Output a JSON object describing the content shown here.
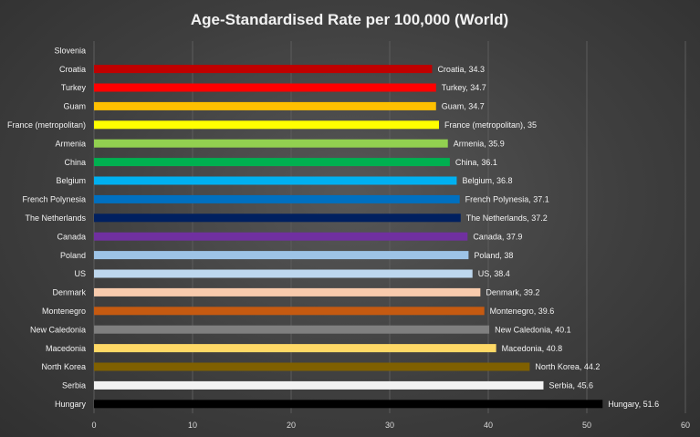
{
  "chart_data": {
    "type": "bar",
    "orientation": "horizontal",
    "title": "Age-Standardised Rate per 100,000 (World)",
    "xlabel": "",
    "ylabel": "",
    "xlim": [
      0,
      60
    ],
    "x_ticks": [
      0,
      10,
      20,
      30,
      40,
      50,
      60
    ],
    "grid": true,
    "legend": "none",
    "bars": [
      {
        "category": "Slovenia",
        "value": null,
        "color": "#3f3f3f",
        "label": ""
      },
      {
        "category": "Croatia",
        "value": 34.3,
        "color": "#c00000",
        "label": "Croatia, 34.3"
      },
      {
        "category": "Turkey",
        "value": 34.7,
        "color": "#ff0000",
        "label": "Turkey, 34.7"
      },
      {
        "category": "Guam",
        "value": 34.7,
        "color": "#ffc000",
        "label": "Guam, 34.7"
      },
      {
        "category": "France (metropolitan)",
        "value": 35,
        "color": "#ffff00",
        "label": "France (metropolitan), 35"
      },
      {
        "category": "Armenia",
        "value": 35.9,
        "color": "#92d050",
        "label": "Armenia, 35.9"
      },
      {
        "category": "China",
        "value": 36.1,
        "color": "#00b050",
        "label": "China, 36.1"
      },
      {
        "category": "Belgium",
        "value": 36.8,
        "color": "#00b0f0",
        "label": "Belgium, 36.8"
      },
      {
        "category": "French Polynesia",
        "value": 37.1,
        "color": "#0070c0",
        "label": "French Polynesia, 37.1"
      },
      {
        "category": "The Netherlands",
        "value": 37.2,
        "color": "#002060",
        "label": "The Netherlands, 37.2"
      },
      {
        "category": "Canada",
        "value": 37.9,
        "color": "#7030a0",
        "label": "Canada, 37.9"
      },
      {
        "category": "Poland",
        "value": 38,
        "color": "#9dc3e6",
        "label": "Poland, 38"
      },
      {
        "category": "US",
        "value": 38.4,
        "color": "#bdd7ee",
        "label": "US, 38.4"
      },
      {
        "category": "Denmark",
        "value": 39.2,
        "color": "#f8cbad",
        "label": "Denmark, 39.2"
      },
      {
        "category": "Montenegro",
        "value": 39.6,
        "color": "#c55a11",
        "label": "Montenegro, 39.6"
      },
      {
        "category": "New Caledonia",
        "value": 40.1,
        "color": "#7f7f7f",
        "label": "New Caledonia, 40.1"
      },
      {
        "category": "Macedonia",
        "value": 40.8,
        "color": "#ffd966",
        "label": "Macedonia, 40.8"
      },
      {
        "category": "North Korea",
        "value": 44.2,
        "color": "#7f6000",
        "label": "North Korea, 44.2"
      },
      {
        "category": "Serbia",
        "value": 45.6,
        "color": "#f2f2f2",
        "label": "Serbia, 45.6"
      },
      {
        "category": "Hungary",
        "value": 51.6,
        "color": "#000000",
        "label": "Hungary, 51.6"
      }
    ]
  }
}
